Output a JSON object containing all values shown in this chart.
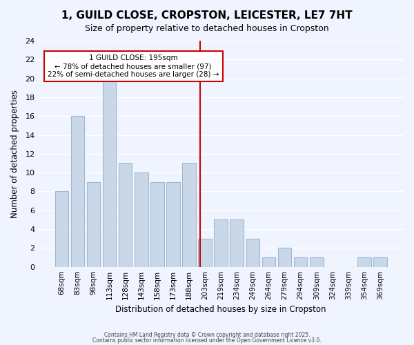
{
  "title": "1, GUILD CLOSE, CROPSTON, LEICESTER, LE7 7HT",
  "subtitle": "Size of property relative to detached houses in Cropston",
  "xlabel": "Distribution of detached houses by size in Cropston",
  "ylabel": "Number of detached properties",
  "bar_labels": [
    "68sqm",
    "83sqm",
    "98sqm",
    "113sqm",
    "128sqm",
    "143sqm",
    "158sqm",
    "173sqm",
    "188sqm",
    "203sqm",
    "219sqm",
    "234sqm",
    "249sqm",
    "264sqm",
    "279sqm",
    "294sqm",
    "309sqm",
    "324sqm",
    "339sqm",
    "354sqm",
    "369sqm"
  ],
  "bar_values": [
    8,
    16,
    9,
    20,
    11,
    10,
    9,
    9,
    11,
    3,
    5,
    5,
    3,
    1,
    2,
    1,
    1,
    0,
    0,
    1,
    1
  ],
  "bar_color": "#c8d8e8",
  "bar_edge_color": "#a0b8d0",
  "vline_x": 8.67,
  "vline_color": "#cc0000",
  "annotation_title": "1 GUILD CLOSE: 195sqm",
  "annotation_line1": "← 78% of detached houses are smaller (97)",
  "annotation_line2": "22% of semi-detached houses are larger (28) →",
  "annotation_box_color": "#ffffff",
  "annotation_box_edge": "#cc0000",
  "ylim": [
    0,
    24
  ],
  "yticks": [
    0,
    2,
    4,
    6,
    8,
    10,
    12,
    14,
    16,
    18,
    20,
    22,
    24
  ],
  "bg_color": "#f0f4ff",
  "grid_color": "#ffffff",
  "footer1": "Contains HM Land Registry data © Crown copyright and database right 2025.",
  "footer2": "Contains public sector information licensed under the Open Government Licence v3.0."
}
